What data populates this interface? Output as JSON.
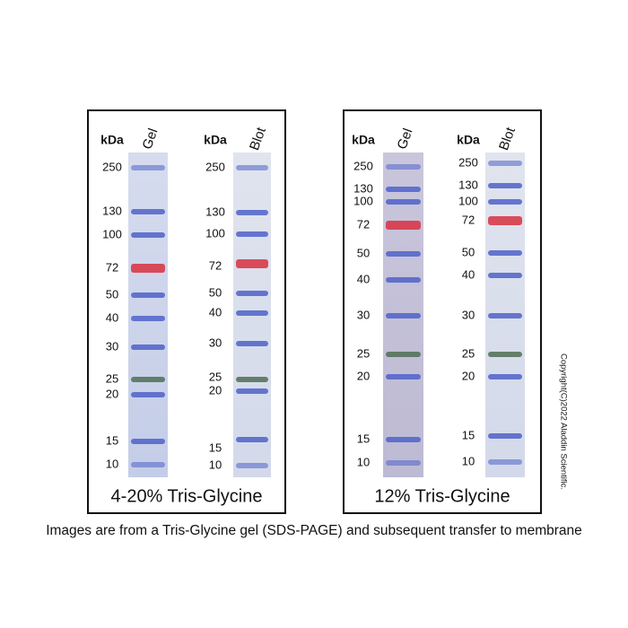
{
  "panels": [
    {
      "title": "4-20% Tris-Glycine",
      "lanes": [
        {
          "unit": "kDa",
          "header": "Gel",
          "markers": [
            "250",
            "130",
            "100",
            "72",
            "50",
            "40",
            "30",
            "25",
            "20",
            "15",
            "10"
          ]
        },
        {
          "unit": "kDa",
          "header": "Blot",
          "markers": [
            "250",
            "130",
            "100",
            "72",
            "50",
            "40",
            "30",
            "25",
            "20",
            "15",
            "10"
          ]
        }
      ]
    },
    {
      "title": "12% Tris-Glycine",
      "lanes": [
        {
          "unit": "kDa",
          "header": "Gel",
          "markers": [
            "250",
            "130",
            "100",
            "72",
            "50",
            "40",
            "30",
            "25",
            "20",
            "15",
            "10"
          ]
        },
        {
          "unit": "kDa",
          "header": "Blot",
          "markers": [
            "250",
            "130",
            "100",
            "72",
            "50",
            "40",
            "30",
            "25",
            "20",
            "15",
            "10"
          ]
        }
      ]
    }
  ],
  "caption": "Images are from a Tris-Glycine gel (SDS-PAGE) and subsequent transfer to membrane",
  "copyright": "Copyright(C)2022 Aladdin Scientific."
}
